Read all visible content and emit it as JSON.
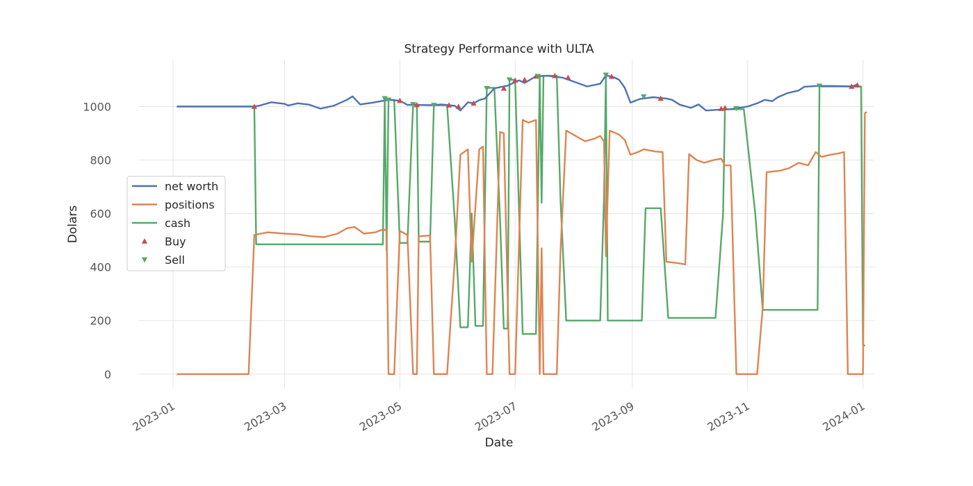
{
  "chart_data": {
    "type": "line",
    "title": "Strategy Performance with ULTA",
    "xlabel": "Date",
    "ylabel": "Dolars",
    "xlim": [
      "2022-12-14",
      "2024-01-07"
    ],
    "ylim": [
      -55,
      1175
    ],
    "grid": true,
    "legend_position": "center-left",
    "x_ticks": [
      "2023-01",
      "2023-03",
      "2023-05",
      "2023-07",
      "2023-09",
      "2023-11",
      "2024-01"
    ],
    "y_ticks": [
      0,
      200,
      400,
      600,
      800,
      1000
    ],
    "series": [
      {
        "name": "net worth",
        "color": "#4c72b0",
        "points": [
          [
            "2023-01-03",
            1000
          ],
          [
            "2023-02-13",
            1000
          ],
          [
            "2023-02-16",
            1004
          ],
          [
            "2023-02-22",
            1016
          ],
          [
            "2023-03-01",
            1010
          ],
          [
            "2023-03-03",
            1004
          ],
          [
            "2023-03-08",
            1012
          ],
          [
            "2023-03-14",
            1007
          ],
          [
            "2023-03-20",
            992
          ],
          [
            "2023-03-27",
            1003
          ],
          [
            "2023-04-03",
            1025
          ],
          [
            "2023-04-06",
            1038
          ],
          [
            "2023-04-10",
            1008
          ],
          [
            "2023-04-17",
            1015
          ],
          [
            "2023-04-21",
            1020
          ],
          [
            "2023-04-25",
            1025
          ],
          [
            "2023-05-01",
            1022
          ],
          [
            "2023-05-05",
            1006
          ],
          [
            "2023-05-10",
            1006
          ],
          [
            "2023-05-17",
            1005
          ],
          [
            "2023-05-23",
            1008
          ],
          [
            "2023-05-30",
            1003
          ],
          [
            "2023-06-02",
            985
          ],
          [
            "2023-06-06",
            1016
          ],
          [
            "2023-06-09",
            1012
          ],
          [
            "2023-06-12",
            1024
          ],
          [
            "2023-06-15",
            1030
          ],
          [
            "2023-06-20",
            1068
          ],
          [
            "2023-06-27",
            1078
          ],
          [
            "2023-07-03",
            1098
          ],
          [
            "2023-07-06",
            1088
          ],
          [
            "2023-07-12",
            1113
          ],
          [
            "2023-07-18",
            1115
          ],
          [
            "2023-07-26",
            1108
          ],
          [
            "2023-08-03",
            1088
          ],
          [
            "2023-08-08",
            1075
          ],
          [
            "2023-08-15",
            1085
          ],
          [
            "2023-08-18",
            1116
          ],
          [
            "2023-08-22",
            1110
          ],
          [
            "2023-08-25",
            1100
          ],
          [
            "2023-08-28",
            1070
          ],
          [
            "2023-08-31",
            1015
          ],
          [
            "2023-09-05",
            1028
          ],
          [
            "2023-09-12",
            1035
          ],
          [
            "2023-09-19",
            1030
          ],
          [
            "2023-09-22",
            1025
          ],
          [
            "2023-09-26",
            1007
          ],
          [
            "2023-10-02",
            995
          ],
          [
            "2023-10-06",
            1008
          ],
          [
            "2023-10-10",
            985
          ],
          [
            "2023-10-16",
            988
          ],
          [
            "2023-10-23",
            990
          ],
          [
            "2023-10-27",
            995
          ],
          [
            "2023-11-01",
            1000
          ],
          [
            "2023-11-06",
            1012
          ],
          [
            "2023-11-10",
            1025
          ],
          [
            "2023-11-14",
            1020
          ],
          [
            "2023-11-17",
            1035
          ],
          [
            "2023-11-22",
            1050
          ],
          [
            "2023-11-28",
            1060
          ],
          [
            "2023-12-01",
            1074
          ],
          [
            "2023-12-08",
            1077
          ],
          [
            "2023-12-15",
            1077
          ],
          [
            "2023-12-22",
            1076
          ],
          [
            "2023-12-26",
            1075
          ],
          [
            "2023-12-29",
            1082
          ]
        ]
      },
      {
        "name": "positions",
        "color": "#dd8452",
        "points": [
          [
            "2023-01-03",
            0
          ],
          [
            "2023-02-10",
            0
          ],
          [
            "2023-02-13",
            520
          ],
          [
            "2023-02-20",
            530
          ],
          [
            "2023-03-01",
            525
          ],
          [
            "2023-03-08",
            522
          ],
          [
            "2023-03-15",
            515
          ],
          [
            "2023-03-22",
            512
          ],
          [
            "2023-03-29",
            525
          ],
          [
            "2023-04-03",
            545
          ],
          [
            "2023-04-07",
            550
          ],
          [
            "2023-04-12",
            525
          ],
          [
            "2023-04-18",
            530
          ],
          [
            "2023-04-21",
            538
          ],
          [
            "2023-04-24",
            540
          ],
          [
            "2023-04-25",
            0
          ],
          [
            "2023-04-28",
            0
          ],
          [
            "2023-05-01",
            535
          ],
          [
            "2023-05-05",
            520
          ],
          [
            "2023-05-08",
            0
          ],
          [
            "2023-05-10",
            0
          ],
          [
            "2023-05-11",
            515
          ],
          [
            "2023-05-17",
            518
          ],
          [
            "2023-05-19",
            0
          ],
          [
            "2023-05-26",
            0
          ],
          [
            "2023-05-30",
            420
          ],
          [
            "2023-06-02",
            820
          ],
          [
            "2023-06-06",
            840
          ],
          [
            "2023-06-08",
            420
          ],
          [
            "2023-06-12",
            840
          ],
          [
            "2023-06-14",
            850
          ],
          [
            "2023-06-16",
            0
          ],
          [
            "2023-06-19",
            0
          ],
          [
            "2023-06-23",
            905
          ],
          [
            "2023-06-25",
            900
          ],
          [
            "2023-06-28",
            0
          ],
          [
            "2023-07-01",
            0
          ],
          [
            "2023-07-05",
            950
          ],
          [
            "2023-07-08",
            940
          ],
          [
            "2023-07-12",
            950
          ],
          [
            "2023-07-14",
            0
          ],
          [
            "2023-07-15",
            470
          ],
          [
            "2023-07-16",
            0
          ],
          [
            "2023-07-23",
            0
          ],
          [
            "2023-07-25",
            460
          ],
          [
            "2023-07-28",
            910
          ],
          [
            "2023-08-02",
            890
          ],
          [
            "2023-08-07",
            870
          ],
          [
            "2023-08-12",
            880
          ],
          [
            "2023-08-15",
            890
          ],
          [
            "2023-08-17",
            870
          ],
          [
            "2023-08-18",
            440
          ],
          [
            "2023-08-20",
            910
          ],
          [
            "2023-08-25",
            895
          ],
          [
            "2023-08-28",
            875
          ],
          [
            "2023-08-31",
            820
          ],
          [
            "2023-09-04",
            830
          ],
          [
            "2023-09-07",
            840
          ],
          [
            "2023-09-13",
            832
          ],
          [
            "2023-09-17",
            830
          ],
          [
            "2023-09-19",
            420
          ],
          [
            "2023-09-25",
            415
          ],
          [
            "2023-09-29",
            410
          ],
          [
            "2023-10-01",
            822
          ],
          [
            "2023-10-05",
            800
          ],
          [
            "2023-10-09",
            790
          ],
          [
            "2023-10-14",
            800
          ],
          [
            "2023-10-18",
            805
          ],
          [
            "2023-10-20",
            780
          ],
          [
            "2023-10-23",
            780
          ],
          [
            "2023-10-26",
            0
          ],
          [
            "2023-11-06",
            0
          ],
          [
            "2023-11-09",
            250
          ],
          [
            "2023-11-11",
            755
          ],
          [
            "2023-11-18",
            760
          ],
          [
            "2023-11-23",
            770
          ],
          [
            "2023-11-28",
            790
          ],
          [
            "2023-12-03",
            780
          ],
          [
            "2023-12-07",
            830
          ],
          [
            "2023-12-10",
            812
          ],
          [
            "2023-12-15",
            820
          ],
          [
            "2023-12-19",
            825
          ],
          [
            "2023-12-22",
            830
          ],
          [
            "2023-12-24",
            0
          ],
          [
            "2024-01-01",
            0
          ],
          [
            "2024-01-02",
            975
          ],
          [
            "2024-01-03",
            980
          ]
        ]
      },
      {
        "name": "cash",
        "color": "#55a868",
        "points": [
          [
            "2023-01-03",
            1000
          ],
          [
            "2023-02-13",
            1000
          ],
          [
            "2023-02-14",
            485
          ],
          [
            "2023-04-22",
            485
          ],
          [
            "2023-04-23",
            1025
          ],
          [
            "2023-04-24",
            460
          ],
          [
            "2023-04-25",
            1025
          ],
          [
            "2023-04-28",
            1025
          ],
          [
            "2023-05-01",
            490
          ],
          [
            "2023-05-05",
            490
          ],
          [
            "2023-05-08",
            1008
          ],
          [
            "2023-05-10",
            1008
          ],
          [
            "2023-05-11",
            495
          ],
          [
            "2023-05-17",
            495
          ],
          [
            "2023-05-19",
            1005
          ],
          [
            "2023-05-26",
            1005
          ],
          [
            "2023-05-30",
            580
          ],
          [
            "2023-06-02",
            175
          ],
          [
            "2023-06-06",
            175
          ],
          [
            "2023-06-08",
            600
          ],
          [
            "2023-06-10",
            180
          ],
          [
            "2023-06-14",
            180
          ],
          [
            "2023-06-16",
            1070
          ],
          [
            "2023-06-20",
            1070
          ],
          [
            "2023-06-23",
            580
          ],
          [
            "2023-06-25",
            170
          ],
          [
            "2023-06-27",
            170
          ],
          [
            "2023-06-28",
            1100
          ],
          [
            "2023-07-01",
            1100
          ],
          [
            "2023-07-05",
            150
          ],
          [
            "2023-07-12",
            150
          ],
          [
            "2023-07-14",
            1115
          ],
          [
            "2023-07-15",
            640
          ],
          [
            "2023-07-16",
            1115
          ],
          [
            "2023-07-23",
            1115
          ],
          [
            "2023-07-25",
            650
          ],
          [
            "2023-07-28",
            200
          ],
          [
            "2023-08-15",
            200
          ],
          [
            "2023-08-17",
            660
          ],
          [
            "2023-08-18",
            1115
          ],
          [
            "2023-08-19",
            200
          ],
          [
            "2023-09-06",
            200
          ],
          [
            "2023-09-08",
            620
          ],
          [
            "2023-09-16",
            620
          ],
          [
            "2023-09-20",
            210
          ],
          [
            "2023-10-15",
            210
          ],
          [
            "2023-10-19",
            600
          ],
          [
            "2023-10-20",
            990
          ],
          [
            "2023-10-30",
            990
          ],
          [
            "2023-11-05",
            600
          ],
          [
            "2023-11-09",
            240
          ],
          [
            "2023-12-08",
            240
          ],
          [
            "2023-12-09",
            1075
          ],
          [
            "2023-12-31",
            1075
          ],
          [
            "2024-01-01",
            110
          ],
          [
            "2024-01-02",
            105
          ]
        ]
      }
    ],
    "markers": [
      {
        "name": "Buy",
        "color": "#c44e52",
        "shape": "triangle-up",
        "points": [
          [
            "2023-02-13",
            1000
          ],
          [
            "2023-05-01",
            1022
          ],
          [
            "2023-05-10",
            1006
          ],
          [
            "2023-05-27",
            1005
          ],
          [
            "2023-06-01",
            1000
          ],
          [
            "2023-06-09",
            1012
          ],
          [
            "2023-06-25",
            1068
          ],
          [
            "2023-07-01",
            1098
          ],
          [
            "2023-07-06",
            1100
          ],
          [
            "2023-07-12",
            1113
          ],
          [
            "2023-07-22",
            1115
          ],
          [
            "2023-07-29",
            1108
          ],
          [
            "2023-08-21",
            1112
          ],
          [
            "2023-09-16",
            1030
          ],
          [
            "2023-10-18",
            992
          ],
          [
            "2023-10-20",
            995
          ],
          [
            "2023-12-26",
            1075
          ],
          [
            "2023-12-29",
            1080
          ]
        ]
      },
      {
        "name": "Sell",
        "color": "#55a868",
        "shape": "triangle-down",
        "points": [
          [
            "2023-04-23",
            1030
          ],
          [
            "2023-04-25",
            1025
          ],
          [
            "2023-05-08",
            1008
          ],
          [
            "2023-05-19",
            1005
          ],
          [
            "2023-06-16",
            1068
          ],
          [
            "2023-06-28",
            1100
          ],
          [
            "2023-07-13",
            1113
          ],
          [
            "2023-08-18",
            1118
          ],
          [
            "2023-09-07",
            1037
          ],
          [
            "2023-10-26",
            993
          ],
          [
            "2023-12-09",
            1077
          ]
        ]
      }
    ]
  }
}
